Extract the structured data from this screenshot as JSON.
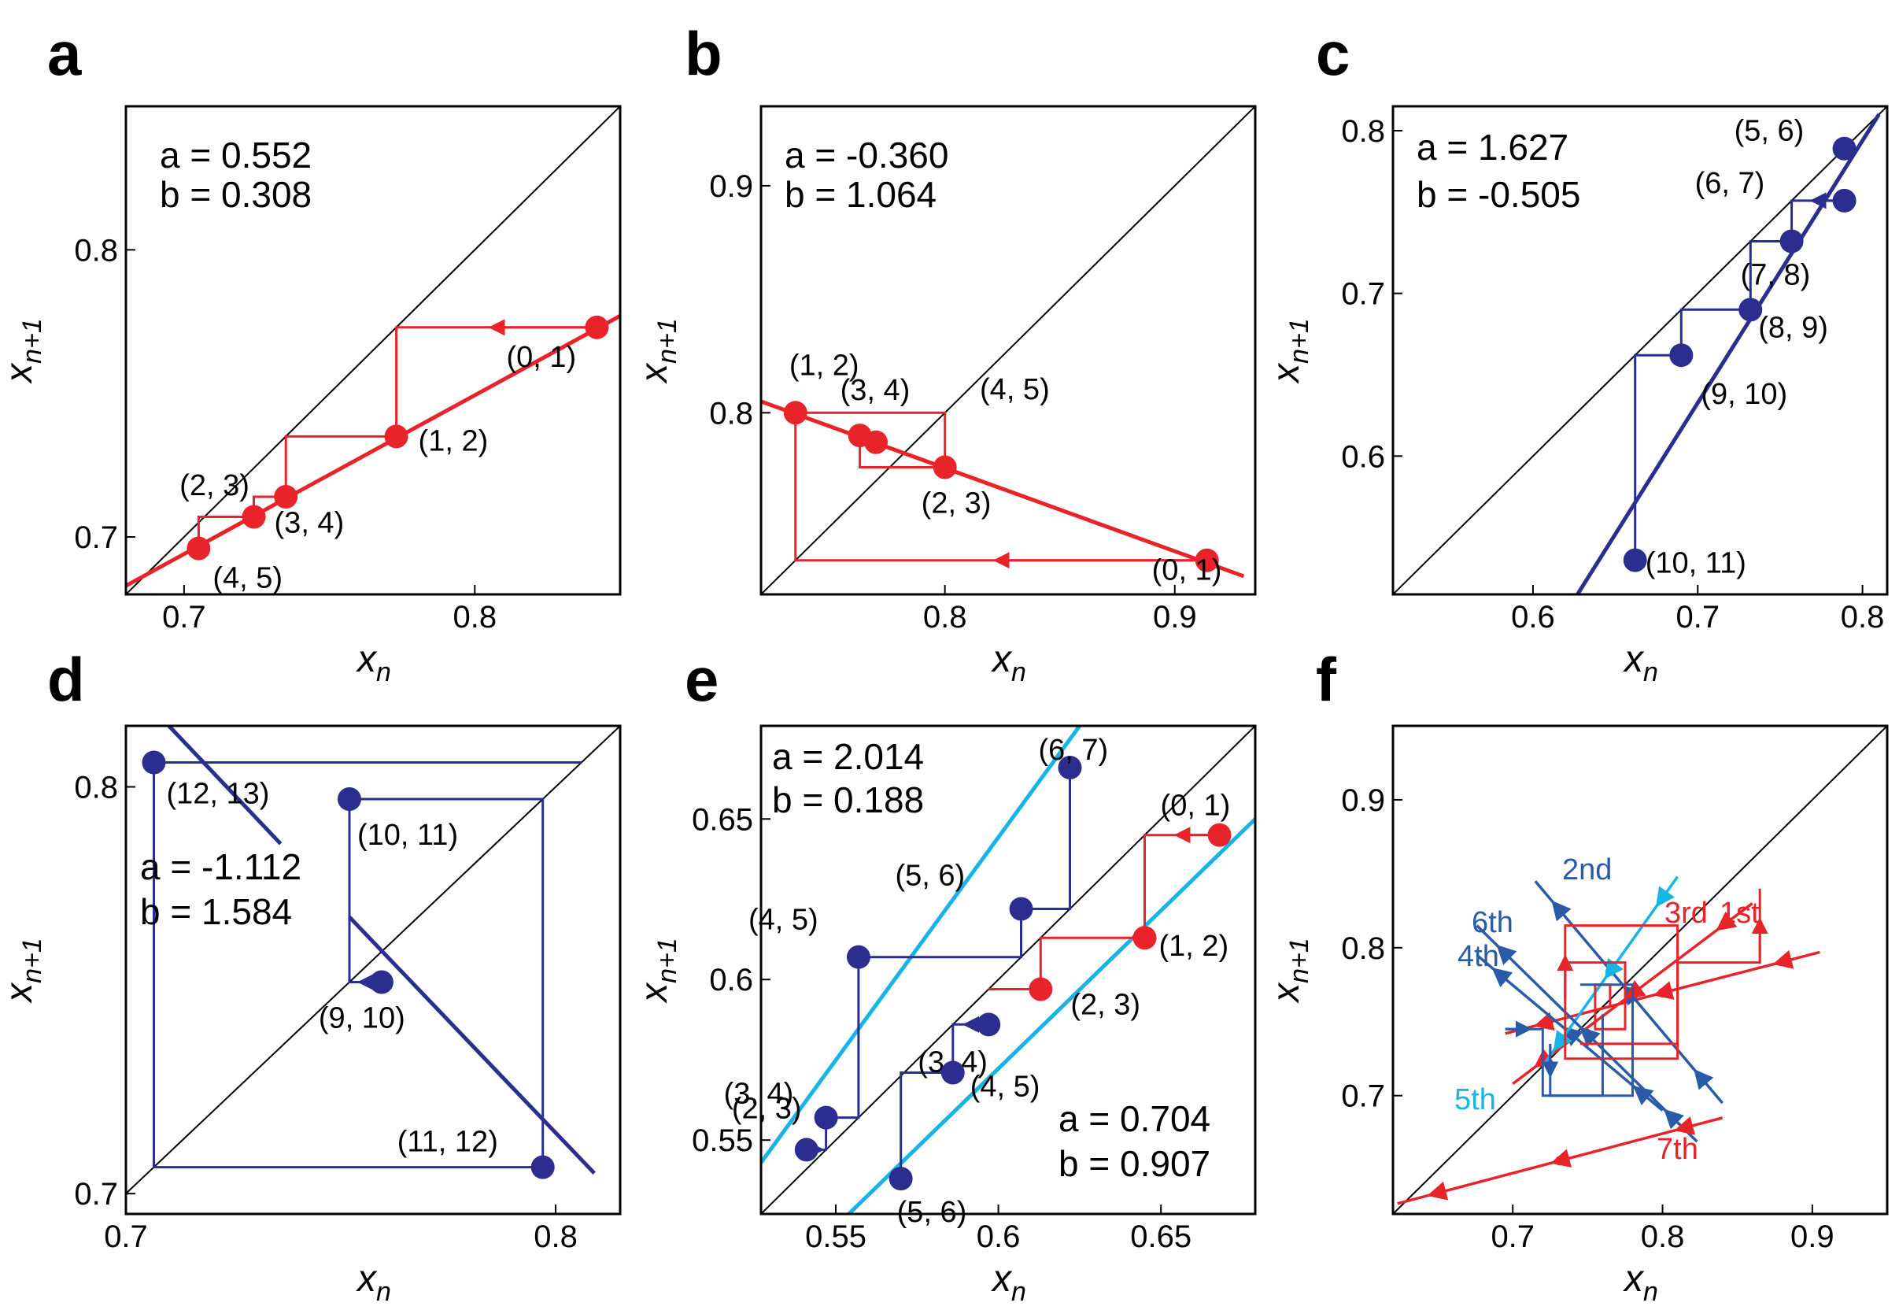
{
  "figure": {
    "colors": {
      "red": "#e8242a",
      "navy": "#2b2e8f",
      "cyan": "#19b4e6",
      "blue": "#2a5ba8",
      "black": "#000000"
    }
  },
  "chart_data": [
    {
      "type": "scatter",
      "panel": "a",
      "title": "",
      "xlabel": "x_n",
      "ylabel": "x_n+1",
      "xlim": [
        0.68,
        0.85
      ],
      "ylim": [
        0.68,
        0.85
      ],
      "xticks": [
        0.7,
        0.8
      ],
      "xtick_labels": [
        "0.7",
        "0.8"
      ],
      "yticks": [
        0.7,
        0.8
      ],
      "ytick_labels": [
        "0.7",
        "0.8"
      ],
      "params": [
        {
          "a": "a = 0.552",
          "b": "b = 0.308"
        }
      ],
      "map_lines": [
        {
          "color": "red",
          "x1": 0.68,
          "y1": 0.683,
          "x2": 0.85,
          "y2": 0.777
        }
      ],
      "points": [
        {
          "label": "(0, 1)",
          "x": 0.842,
          "y": 0.773,
          "color": "red"
        },
        {
          "label": "(1, 2)",
          "x": 0.773,
          "y": 0.735,
          "color": "red"
        },
        {
          "label": "(2, 3)",
          "x": 0.735,
          "y": 0.714,
          "color": "red"
        },
        {
          "label": "(3, 4)",
          "x": 0.724,
          "y": 0.707,
          "color": "red"
        },
        {
          "label": "(4, 5)",
          "x": 0.705,
          "y": 0.696,
          "color": "red"
        }
      ],
      "cobweb": [
        {
          "color": "red",
          "points": [
            [
              0.842,
              0.773
            ],
            [
              0.773,
              0.773
            ],
            [
              0.773,
              0.735
            ],
            [
              0.735,
              0.735
            ],
            [
              0.735,
              0.714
            ],
            [
              0.724,
              0.714
            ],
            [
              0.724,
              0.707
            ],
            [
              0.705,
              0.707
            ],
            [
              0.705,
              0.696
            ]
          ]
        }
      ]
    },
    {
      "type": "scatter",
      "panel": "b",
      "title": "",
      "xlabel": "x_n",
      "ylabel": "x_n+1",
      "xlim": [
        0.72,
        0.935
      ],
      "ylim": [
        0.72,
        0.935
      ],
      "xticks": [
        0.8,
        0.9
      ],
      "xtick_labels": [
        "0.8",
        "0.9"
      ],
      "yticks": [
        0.8,
        0.9
      ],
      "ytick_labels": [
        "0.8",
        "0.9"
      ],
      "params": [
        {
          "a": "a = -0.360",
          "b": "b = 1.064"
        }
      ],
      "map_lines": [
        {
          "color": "red",
          "x1": 0.72,
          "y1": 0.805,
          "x2": 0.93,
          "y2": 0.728
        }
      ],
      "points": [
        {
          "label": "(0, 1)",
          "x": 0.914,
          "y": 0.735,
          "color": "red"
        },
        {
          "label": "(1, 2)",
          "x": 0.735,
          "y": 0.8,
          "color": "red"
        },
        {
          "label": "(2, 3)",
          "x": 0.8,
          "y": 0.776,
          "color": "red"
        },
        {
          "label": "(3, 4)",
          "x": 0.763,
          "y": 0.79,
          "color": "red"
        },
        {
          "label": "(4, 5)",
          "x": 0.77,
          "y": 0.787,
          "color": "red"
        }
      ],
      "cobweb": [
        {
          "color": "red",
          "points": [
            [
              0.914,
              0.735
            ],
            [
              0.735,
              0.735
            ],
            [
              0.735,
              0.8
            ],
            [
              0.8,
              0.8
            ],
            [
              0.8,
              0.776
            ],
            [
              0.763,
              0.776
            ],
            [
              0.763,
              0.79
            ],
            [
              0.77,
              0.79
            ],
            [
              0.77,
              0.787
            ]
          ]
        }
      ]
    },
    {
      "type": "scatter",
      "panel": "c",
      "title": "",
      "xlabel": "x_n",
      "ylabel": "x_n+1",
      "xlim": [
        0.515,
        0.815
      ],
      "ylim": [
        0.515,
        0.815
      ],
      "xticks": [
        0.6,
        0.7,
        0.8
      ],
      "xtick_labels": [
        "0.6",
        "0.7",
        "0.8"
      ],
      "yticks": [
        0.6,
        0.7,
        0.8
      ],
      "ytick_labels": [
        "0.6",
        "0.7",
        "0.8"
      ],
      "params": [
        {
          "a": "a = 1.627",
          "b": "b = -0.505"
        }
      ],
      "map_lines": [
        {
          "color": "navy",
          "x1": 0.627,
          "y1": 0.515,
          "x2": 0.81,
          "y2": 0.81
        }
      ],
      "points": [
        {
          "label": "(5, 6)",
          "x": 0.789,
          "y": 0.789,
          "color": "navy"
        },
        {
          "label": "(6, 7)",
          "x": 0.789,
          "y": 0.757,
          "color": "navy"
        },
        {
          "label": "(7, 8)",
          "x": 0.757,
          "y": 0.732,
          "color": "navy"
        },
        {
          "label": "(8, 9)",
          "x": 0.732,
          "y": 0.69,
          "color": "navy"
        },
        {
          "label": "(9, 10)",
          "x": 0.69,
          "y": 0.662,
          "color": "navy"
        },
        {
          "label": "(10, 11)",
          "x": 0.662,
          "y": 0.536,
          "color": "navy"
        }
      ],
      "cobweb": [
        {
          "color": "navy",
          "points": [
            [
              0.789,
              0.757
            ],
            [
              0.757,
              0.757
            ],
            [
              0.757,
              0.732
            ],
            [
              0.732,
              0.732
            ],
            [
              0.732,
              0.69
            ],
            [
              0.69,
              0.69
            ],
            [
              0.69,
              0.662
            ],
            [
              0.662,
              0.662
            ],
            [
              0.662,
              0.536
            ]
          ]
        }
      ]
    },
    {
      "type": "scatter",
      "panel": "d",
      "title": "",
      "xlabel": "x_n",
      "ylabel": "x_n+1",
      "xlim": [
        0.7,
        0.815
      ],
      "ylim": [
        0.695,
        0.815
      ],
      "xticks": [
        0.7,
        0.8
      ],
      "xtick_labels": [
        "0.7",
        "0.8"
      ],
      "yticks": [
        0.7,
        0.8
      ],
      "ytick_labels": [
        "0.7",
        "0.8"
      ],
      "params": [
        {
          "a": "a = -1.112",
          "b": "b = 1.584"
        }
      ],
      "map_lines": [
        {
          "color": "navy",
          "x1": 0.71,
          "y1": 0.815,
          "x2": 0.736,
          "y2": 0.786
        },
        {
          "color": "navy",
          "x1": 0.752,
          "y1": 0.768,
          "x2": 0.809,
          "y2": 0.705
        }
      ],
      "points": [
        {
          "label": "(12, 13)",
          "x": 0.7065,
          "y": 0.806,
          "color": "navy"
        },
        {
          "label": "(10, 11)",
          "x": 0.752,
          "y": 0.797,
          "color": "navy"
        },
        {
          "label": "(9, 10)",
          "x": 0.7595,
          "y": 0.752,
          "color": "navy"
        },
        {
          "label": "(11, 12)",
          "x": 0.797,
          "y": 0.7065,
          "color": "navy"
        }
      ],
      "cobweb": [
        {
          "color": "navy",
          "points": [
            [
              0.7595,
              0.752
            ],
            [
              0.752,
              0.752
            ],
            [
              0.752,
              0.797
            ],
            [
              0.797,
              0.797
            ],
            [
              0.797,
              0.7065
            ],
            [
              0.7065,
              0.7065
            ],
            [
              0.7065,
              0.806
            ],
            [
              0.806,
              0.806
            ]
          ]
        }
      ]
    },
    {
      "type": "scatter",
      "panel": "e",
      "title": "",
      "xlabel": "x_n",
      "ylabel": "x_n+1",
      "xlim": [
        0.527,
        0.679
      ],
      "ylim": [
        0.527,
        0.679
      ],
      "xticks": [
        0.55,
        0.6,
        0.65
      ],
      "xtick_labels": [
        "0.55",
        "0.6",
        "0.65"
      ],
      "yticks": [
        0.55,
        0.6,
        0.65
      ],
      "ytick_labels": [
        "0.55",
        "0.6",
        "0.65"
      ],
      "params": [
        {
          "a": "a = 2.014",
          "b": "b = 0.188"
        },
        {
          "a": "a = 0.704",
          "b": "b = 0.907"
        }
      ],
      "map_lines": [
        {
          "color": "cyan",
          "x1": 0.527,
          "y1": 0.543,
          "x2": 0.625,
          "y2": 0.679
        },
        {
          "color": "cyan",
          "x1": 0.554,
          "y1": 0.527,
          "x2": 0.679,
          "y2": 0.65
        }
      ],
      "points": [
        {
          "label": "(0, 1)",
          "x": 0.668,
          "y": 0.645,
          "color": "red"
        },
        {
          "label": "(1, 2)",
          "x": 0.645,
          "y": 0.613,
          "color": "red"
        },
        {
          "label": "(2, 3)",
          "x": 0.613,
          "y": 0.597,
          "color": "red"
        },
        {
          "label": "(3, 4)",
          "x": 0.597,
          "y": 0.586,
          "color": "navy"
        },
        {
          "label": "(4, 5)",
          "x": 0.586,
          "y": 0.571,
          "color": "navy"
        },
        {
          "label": "(5, 6)",
          "x": 0.57,
          "y": 0.538,
          "color": "navy"
        },
        {
          "label": "(2, 3)",
          "x": 0.541,
          "y": 0.547,
          "color": "navy"
        },
        {
          "label": "(3, 4)",
          "x": 0.547,
          "y": 0.557,
          "color": "navy"
        },
        {
          "label": "(4, 5)",
          "x": 0.557,
          "y": 0.607,
          "color": "navy"
        },
        {
          "label": "(5, 6)",
          "x": 0.607,
          "y": 0.622,
          "color": "navy"
        },
        {
          "label": "(6, 7)",
          "x": 0.622,
          "y": 0.666,
          "color": "navy"
        }
      ],
      "cobweb": [
        {
          "color": "red",
          "points": [
            [
              0.668,
              0.645
            ],
            [
              0.645,
              0.645
            ],
            [
              0.645,
              0.613
            ],
            [
              0.613,
              0.613
            ],
            [
              0.613,
              0.597
            ],
            [
              0.597,
              0.597
            ]
          ]
        },
        {
          "color": "navy",
          "points": [
            [
              0.597,
              0.586
            ],
            [
              0.586,
              0.586
            ],
            [
              0.586,
              0.571
            ],
            [
              0.57,
              0.571
            ],
            [
              0.57,
              0.538
            ]
          ]
        },
        {
          "color": "navy",
          "points": [
            [
              0.541,
              0.547
            ],
            [
              0.547,
              0.547
            ],
            [
              0.547,
              0.557
            ],
            [
              0.557,
              0.557
            ],
            [
              0.557,
              0.607
            ],
            [
              0.607,
              0.607
            ],
            [
              0.607,
              0.622
            ],
            [
              0.622,
              0.622
            ],
            [
              0.622,
              0.666
            ]
          ]
        }
      ]
    },
    {
      "type": "line",
      "panel": "f",
      "title": "",
      "xlabel": "x_n",
      "ylabel": "x_n+1",
      "xlim": [
        0.62,
        0.95
      ],
      "ylim": [
        0.62,
        0.95
      ],
      "xticks": [
        0.7,
        0.8,
        0.9
      ],
      "xtick_labels": [
        "0.7",
        "0.8",
        "0.9"
      ],
      "yticks": [
        0.7,
        0.8,
        0.9
      ],
      "ytick_labels": [
        "0.7",
        "0.8",
        "0.9"
      ],
      "iterations": [
        "1st",
        "2nd",
        "3rd",
        "4th",
        "5th",
        "6th",
        "7th"
      ],
      "series": [
        {
          "name": "1st",
          "color": "red",
          "x1": 0.695,
          "y1": 0.742,
          "x2": 0.905,
          "y2": 0.797
        },
        {
          "name": "2nd",
          "color": "blue",
          "x1": 0.715,
          "y1": 0.845,
          "x2": 0.84,
          "y2": 0.695
        },
        {
          "name": "3rd",
          "color": "red",
          "x1": 0.7,
          "y1": 0.708,
          "x2": 0.86,
          "y2": 0.83
        },
        {
          "name": "4th",
          "color": "blue",
          "x1": 0.676,
          "y1": 0.795,
          "x2": 0.8,
          "y2": 0.69
        },
        {
          "name": "5th",
          "color": "cyan",
          "x1": 0.72,
          "y1": 0.72,
          "x2": 0.81,
          "y2": 0.848
        },
        {
          "name": "6th",
          "color": "blue",
          "x1": 0.676,
          "y1": 0.815,
          "x2": 0.823,
          "y2": 0.669
        },
        {
          "name": "7th",
          "color": "red",
          "x1": 0.623,
          "y1": 0.627,
          "x2": 0.84,
          "y2": 0.685
        }
      ],
      "cobweb": [
        {
          "color": "red",
          "points": [
            [
              0.865,
              0.79
            ],
            [
              0.865,
              0.84
            ],
            [
              0.865,
              0.79
            ],
            [
              0.81,
              0.79
            ],
            [
              0.81,
              0.725
            ],
            [
              0.735,
              0.725
            ],
            [
              0.735,
              0.79
            ],
            [
              0.775,
              0.79
            ],
            [
              0.775,
              0.745
            ],
            [
              0.755,
              0.745
            ],
            [
              0.755,
              0.775
            ],
            [
              0.765,
              0.775
            ],
            [
              0.765,
              0.76
            ]
          ]
        },
        {
          "color": "red",
          "points": [
            [
              0.735,
              0.765
            ],
            [
              0.735,
              0.815
            ],
            [
              0.81,
              0.815
            ],
            [
              0.81,
              0.735
            ],
            [
              0.745,
              0.735
            ]
          ]
        },
        {
          "color": "blue",
          "points": [
            [
              0.695,
              0.745
            ],
            [
              0.72,
              0.745
            ],
            [
              0.72,
              0.7
            ],
            [
              0.78,
              0.7
            ],
            [
              0.78,
              0.775
            ],
            [
              0.745,
              0.775
            ]
          ]
        },
        {
          "color": "blue",
          "points": [
            [
              0.725,
              0.735
            ],
            [
              0.725,
              0.7
            ],
            [
              0.76,
              0.7
            ],
            [
              0.76,
              0.755
            ]
          ]
        }
      ]
    }
  ]
}
